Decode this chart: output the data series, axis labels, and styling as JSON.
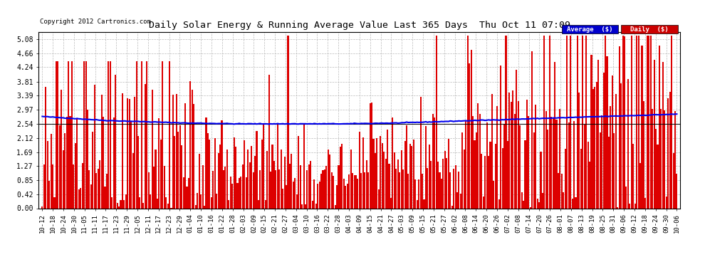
{
  "title": "Daily Solar Energy & Running Average Value Last 365 Days  Thu Oct 11 07:09",
  "copyright": "Copyright 2012 Cartronics.com",
  "legend_labels": [
    "Average  ($)",
    "Daily  ($)"
  ],
  "legend_colors_bg": [
    "#0000cc",
    "#cc0000"
  ],
  "bar_color": "#dd0000",
  "avg_line_color": "#0000ee",
  "black_line_value": 2.54,
  "background_color": "#ffffff",
  "grid_color": "#bbbbbb",
  "yticks": [
    0.0,
    0.42,
    0.85,
    1.27,
    1.69,
    2.12,
    2.54,
    2.97,
    3.39,
    3.81,
    4.24,
    4.66,
    5.08
  ],
  "ylim_max": 5.3,
  "n_bars": 365,
  "xtick_labels": [
    "10-12",
    "10-18",
    "10-24",
    "10-30",
    "11-05",
    "11-11",
    "11-17",
    "11-23",
    "11-29",
    "12-05",
    "12-11",
    "12-17",
    "12-23",
    "12-29",
    "01-04",
    "01-10",
    "01-16",
    "01-22",
    "01-28",
    "02-03",
    "02-09",
    "02-15",
    "02-21",
    "02-27",
    "03-04",
    "03-10",
    "03-16",
    "03-22",
    "03-28",
    "04-03",
    "04-09",
    "04-15",
    "04-21",
    "04-27",
    "05-03",
    "05-09",
    "05-15",
    "05-21",
    "05-27",
    "06-02",
    "06-08",
    "06-14",
    "06-20",
    "06-26",
    "07-02",
    "07-08",
    "07-14",
    "07-20",
    "07-26",
    "08-01",
    "08-07",
    "08-13",
    "08-19",
    "08-25",
    "08-31",
    "09-06",
    "09-12",
    "09-18",
    "09-24",
    "09-30",
    "10-06"
  ],
  "avg_curve": [
    2.76,
    2.74,
    2.72,
    2.7,
    2.68,
    2.66,
    2.64,
    2.63,
    2.62,
    2.61,
    2.6,
    2.59,
    2.58,
    2.57,
    2.56,
    2.56,
    2.55,
    2.55,
    2.54,
    2.54,
    2.54,
    2.54,
    2.54,
    2.54,
    2.54,
    2.54,
    2.54,
    2.54,
    2.54,
    2.54,
    2.55,
    2.55,
    2.56,
    2.56,
    2.57,
    2.58,
    2.59,
    2.6,
    2.61,
    2.62,
    2.63,
    2.64,
    2.65,
    2.66,
    2.67,
    2.68,
    2.69,
    2.7,
    2.71,
    2.72,
    2.73,
    2.74,
    2.75,
    2.76,
    2.77,
    2.78,
    2.79,
    2.8,
    2.81,
    2.82,
    2.83
  ]
}
